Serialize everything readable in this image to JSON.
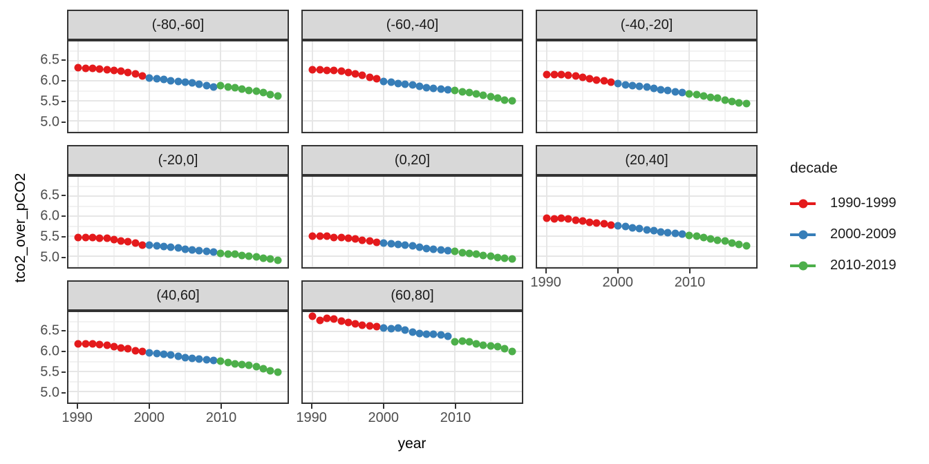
{
  "chart_data": {
    "type": "scatter",
    "title": "",
    "xlabel": "year",
    "ylabel": "tco2_over_pCO2",
    "x": [
      1990,
      1991,
      1992,
      1993,
      1994,
      1995,
      1996,
      1997,
      1998,
      1999,
      2000,
      2001,
      2002,
      2003,
      2004,
      2005,
      2006,
      2007,
      2008,
      2009,
      2010,
      2011,
      2012,
      2013,
      2014,
      2015,
      2016,
      2017,
      2018
    ],
    "facets": [
      {
        "label": "(-80,-60]",
        "values": [
          6.33,
          6.31,
          6.32,
          6.3,
          6.28,
          6.26,
          6.25,
          6.22,
          6.18,
          6.12,
          6.07,
          6.05,
          6.04,
          6.01,
          5.99,
          5.98,
          5.95,
          5.92,
          5.89,
          5.86,
          5.88,
          5.86,
          5.83,
          5.8,
          5.77,
          5.75,
          5.71,
          5.67,
          5.62
        ]
      },
      {
        "label": "(-60,-40]",
        "values": [
          6.29,
          6.28,
          6.27,
          6.26,
          6.24,
          6.21,
          6.18,
          6.15,
          6.1,
          6.05,
          5.99,
          5.97,
          5.94,
          5.92,
          5.9,
          5.87,
          5.84,
          5.82,
          5.8,
          5.78,
          5.76,
          5.73,
          5.71,
          5.68,
          5.64,
          5.61,
          5.57,
          5.53,
          5.5
        ]
      },
      {
        "label": "(-40,-20]",
        "values": [
          6.17,
          6.16,
          6.16,
          6.14,
          6.12,
          6.09,
          6.06,
          6.03,
          6.0,
          5.97,
          5.93,
          5.91,
          5.89,
          5.87,
          5.85,
          5.82,
          5.79,
          5.76,
          5.73,
          5.71,
          5.68,
          5.66,
          5.63,
          5.6,
          5.57,
          5.53,
          5.49,
          5.46,
          5.43
        ]
      },
      {
        "label": "(-20,0]",
        "values": [
          5.48,
          5.47,
          5.48,
          5.46,
          5.45,
          5.42,
          5.39,
          5.36,
          5.33,
          5.29,
          5.28,
          5.27,
          5.25,
          5.23,
          5.21,
          5.18,
          5.16,
          5.14,
          5.12,
          5.11,
          5.08,
          5.06,
          5.05,
          5.03,
          5.01,
          4.99,
          4.96,
          4.93,
          4.91
        ]
      },
      {
        "label": "(0,20]",
        "values": [
          5.51,
          5.5,
          5.5,
          5.48,
          5.47,
          5.45,
          5.43,
          5.41,
          5.38,
          5.35,
          5.33,
          5.32,
          5.3,
          5.28,
          5.26,
          5.23,
          5.2,
          5.18,
          5.16,
          5.14,
          5.12,
          5.1,
          5.08,
          5.06,
          5.03,
          5.01,
          4.98,
          4.95,
          4.93
        ]
      },
      {
        "label": "(20,40]",
        "values": [
          5.96,
          5.94,
          5.95,
          5.93,
          5.91,
          5.88,
          5.86,
          5.83,
          5.81,
          5.78,
          5.76,
          5.74,
          5.72,
          5.7,
          5.67,
          5.64,
          5.61,
          5.59,
          5.57,
          5.56,
          5.53,
          5.5,
          5.47,
          5.44,
          5.41,
          5.38,
          5.34,
          5.3,
          5.27
        ]
      },
      {
        "label": "(40,60]",
        "values": [
          6.2,
          6.19,
          6.2,
          6.18,
          6.16,
          6.13,
          6.1,
          6.07,
          6.03,
          6.0,
          5.97,
          5.96,
          5.94,
          5.92,
          5.89,
          5.86,
          5.84,
          5.81,
          5.8,
          5.78,
          5.76,
          5.73,
          5.7,
          5.68,
          5.66,
          5.63,
          5.58,
          5.53,
          5.49
        ]
      },
      {
        "label": "(60,80]",
        "values": [
          6.88,
          6.79,
          6.83,
          6.81,
          6.77,
          6.73,
          6.69,
          6.67,
          6.64,
          6.62,
          6.6,
          6.57,
          6.59,
          6.54,
          6.49,
          6.46,
          6.44,
          6.44,
          6.42,
          6.39,
          6.25,
          6.26,
          6.24,
          6.2,
          6.17,
          6.14,
          6.12,
          6.08,
          6.0
        ]
      }
    ],
    "decades": [
      {
        "label": "1990-1999",
        "from": 1990,
        "to": 1999,
        "color": "#E41A1C"
      },
      {
        "label": "2000-2009",
        "from": 2000,
        "to": 2009,
        "color": "#377EB8"
      },
      {
        "label": "2010-2019",
        "from": 2010,
        "to": 2019,
        "color": "#4DAF4A"
      }
    ],
    "legend": {
      "title": "decade",
      "position": "right"
    },
    "xlim": [
      1988.6,
      2019.4
    ],
    "ylim": [
      4.73,
      6.99
    ],
    "x_ticks": [
      1990,
      2000,
      2010
    ],
    "x_tick_labels": [
      "1990",
      "2000",
      "2010"
    ],
    "x_minor": [
      1995,
      2005,
      2015
    ],
    "y_ticks": [
      5.0,
      5.5,
      6.0,
      6.5
    ],
    "y_tick_labels": [
      "5.0",
      "5.5",
      "6.0",
      "6.5"
    ],
    "y_minor": [
      4.75,
      5.25,
      5.75,
      6.25,
      6.75
    ],
    "grid": "on"
  },
  "colors": {
    "point_red": "#E41A1C",
    "point_blue": "#377EB8",
    "point_green": "#4DAF4A",
    "strip_background": "#d8d8d8",
    "panel_border": "#333333",
    "grid_major": "#e6e6e6",
    "grid_minor": "#f2f2f2",
    "axis_text": "#4d4d4d",
    "title_text": "#000000"
  }
}
